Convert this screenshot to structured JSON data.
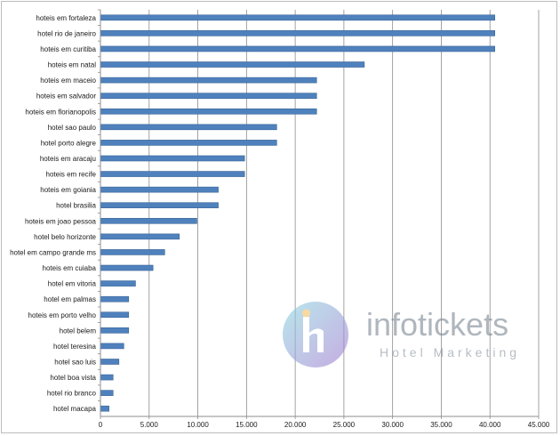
{
  "chart_data": {
    "type": "bar",
    "orientation": "horizontal",
    "title": "",
    "xlabel": "",
    "ylabel": "",
    "xlim": [
      0,
      45000
    ],
    "x_ticks": [
      "0",
      "5.000",
      "10.000",
      "15.000",
      "20.000",
      "25.000",
      "30.000",
      "35.000",
      "40.000",
      "45.000"
    ],
    "grid": true,
    "bar_color": "#4f81bd",
    "categories": [
      "hoteis em fortaleza",
      "hotel rio de janeiro",
      "hoteis em curitiba",
      "hoteis em natal",
      "hoteis em maceio",
      "hoteis em salvador",
      "hoteis em florianopolis",
      "hotel sao paulo",
      "hotel porto alegre",
      "hoteis em aracaju",
      "hoteis em recife",
      "hoteis em goiania",
      "hotel brasilia",
      "hoteis em joao pessoa",
      "hotel belo horizonte",
      "hotel em campo grande ms",
      "hoteis em cuiaba",
      "hotel em vitoria",
      "hotel em palmas",
      "hoteis em porto velho",
      "hotel belem",
      "hotel teresina",
      "hotel sao luis",
      "hotel boa vista",
      "hotel rio branco",
      "hotel macapa"
    ],
    "values": [
      40500,
      40500,
      40500,
      27100,
      22200,
      22200,
      22200,
      18100,
      18100,
      14800,
      14800,
      12100,
      12100,
      9900,
      8100,
      6600,
      5400,
      3600,
      2900,
      2900,
      2900,
      2400,
      1900,
      1300,
      1300,
      880
    ]
  },
  "watermark": {
    "name": "infotickets",
    "tagline": "Hotel Marketing",
    "colors": {
      "circle_start": "#8ed8e0",
      "circle_end": "#a37bd1",
      "h_color": "#f3c56a",
      "text": "#7f8b96"
    }
  }
}
